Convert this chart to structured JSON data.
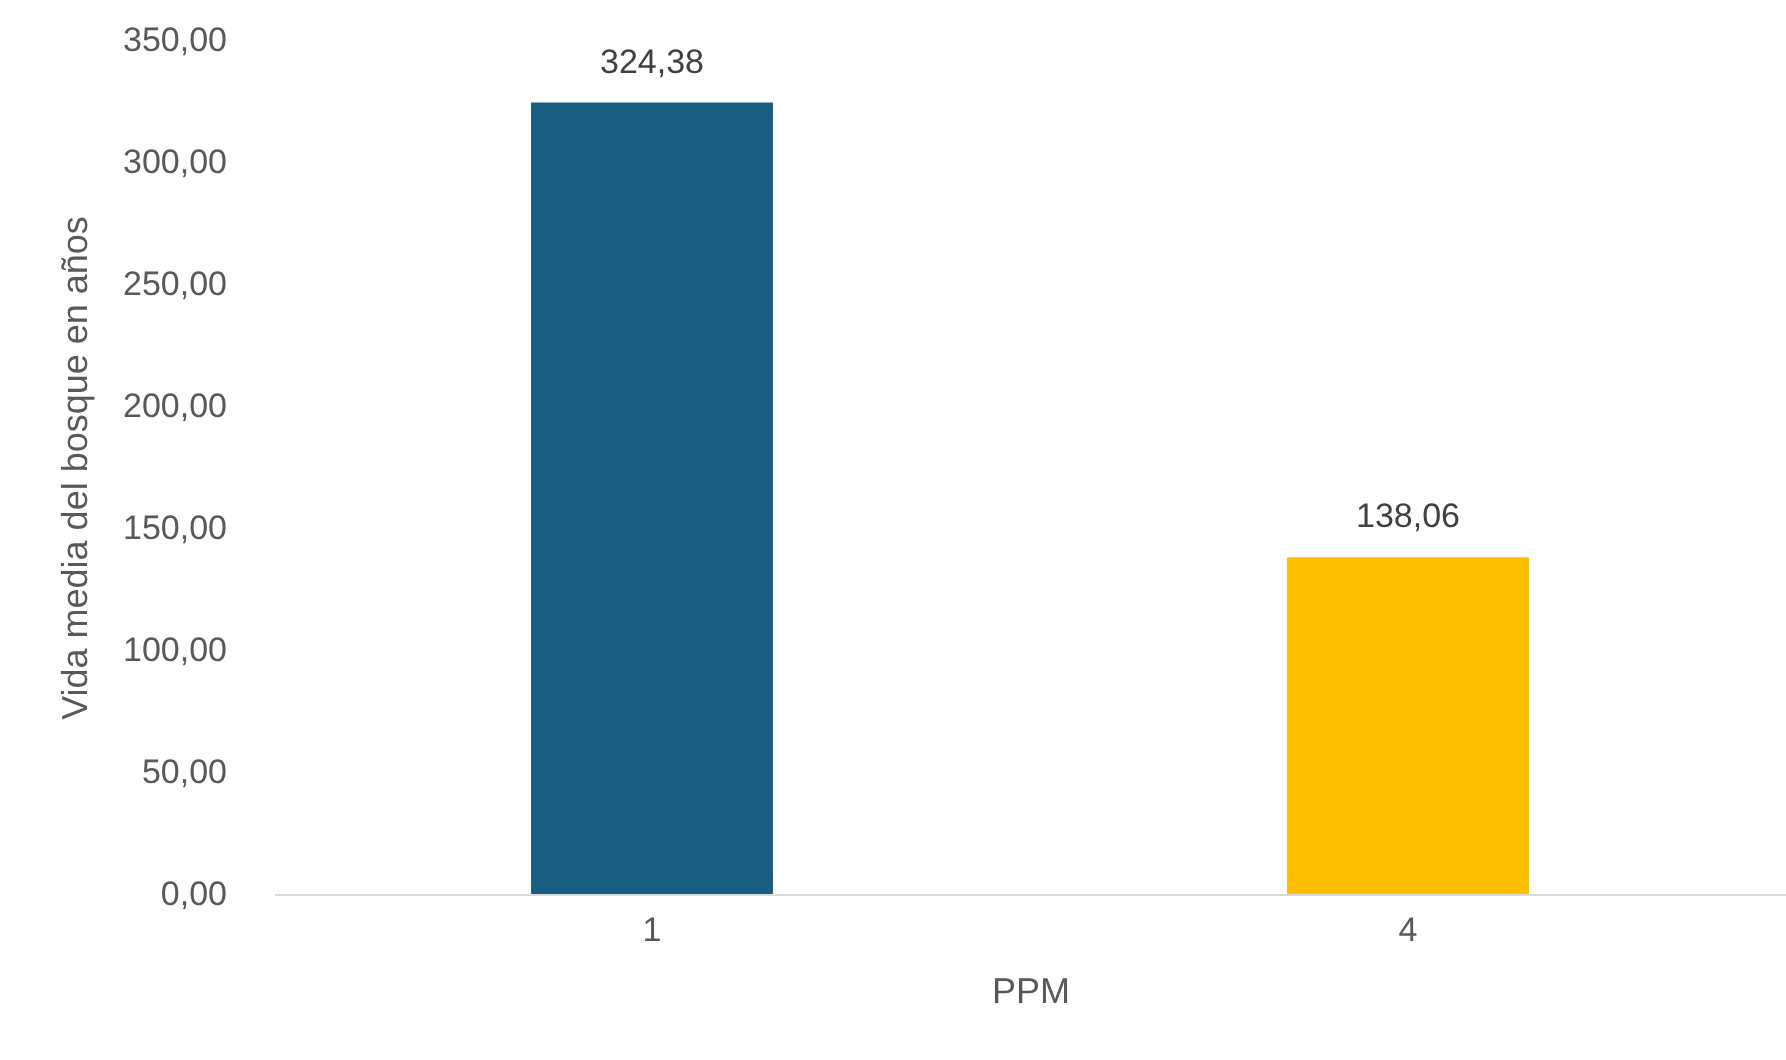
{
  "chart_data": {
    "type": "bar",
    "xlabel": "PPM",
    "ylabel": "Vida media del bosque en años",
    "categories": [
      "1",
      "4"
    ],
    "values": [
      324.38,
      138.06
    ],
    "colors": [
      "#175e82",
      "#fdbf00"
    ],
    "value_labels": [
      "324,38",
      "138,06"
    ],
    "ylim": [
      0,
      350
    ],
    "yticks": [
      {
        "value": 0,
        "label": "0,00"
      },
      {
        "value": 50,
        "label": "50,00"
      },
      {
        "value": 100,
        "label": "100,00"
      },
      {
        "value": 150,
        "label": "150,00"
      },
      {
        "value": 200,
        "label": "200,00"
      },
      {
        "value": 250,
        "label": "250,00"
      },
      {
        "value": 300,
        "label": "300,00"
      },
      {
        "value": 350,
        "label": "350,00"
      }
    ],
    "grid": false
  }
}
